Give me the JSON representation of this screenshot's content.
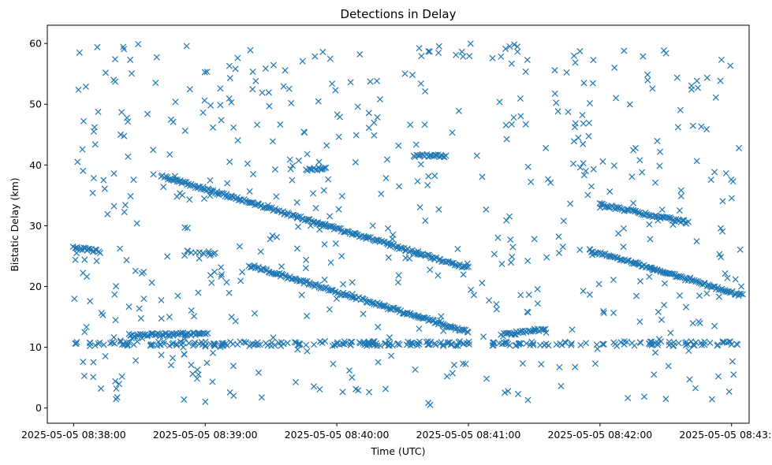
{
  "chart_data": {
    "type": "scatter",
    "title": "Detections in Delay",
    "xlabel": "Time (UTC)",
    "ylabel": "Bistatic Delay (km)",
    "x_type": "datetime",
    "xlim": [
      "2025-05-05 08:37:48",
      "2025-05-05 08:43:08"
    ],
    "ylim": [
      -2.5,
      63
    ],
    "xticks": [
      "2025-05-05 08:38:00",
      "2025-05-05 08:39:00",
      "2025-05-05 08:40:00",
      "2025-05-05 08:41:00",
      "2025-05-05 08:42:00",
      "2025-05-05 08:43:00"
    ],
    "yticks": [
      0,
      10,
      20,
      30,
      40,
      50,
      60
    ],
    "marker": "x",
    "marker_color": "#1f77b4",
    "grid": false,
    "legend": "none",
    "series": [
      {
        "tracks": [
          {
            "t_start": "2025-05-05 08:38:40",
            "t_end": "2025-05-05 08:41:00",
            "y_start": 38.2,
            "y_end": 23.0
          },
          {
            "t_start": "2025-05-05 08:38:00",
            "t_end": "2025-05-05 08:38:12",
            "y_start": 26.5,
            "y_end": 25.7
          },
          {
            "t_start": "2025-05-05 08:39:20",
            "t_end": "2025-05-05 08:41:00",
            "y_start": 23.5,
            "y_end": 12.5
          },
          {
            "t_start": "2025-05-05 08:41:55",
            "t_end": "2025-05-05 08:43:05",
            "y_start": 26.0,
            "y_end": 18.5
          },
          {
            "t_start": "2025-05-05 08:42:00",
            "t_end": "2025-05-05 08:42:40",
            "y_start": 33.5,
            "y_end": 30.5
          },
          {
            "t_start": "2025-05-05 08:39:46",
            "t_end": "2025-05-05 08:39:55",
            "y_start": 39.2,
            "y_end": 39.5
          },
          {
            "t_start": "2025-05-05 08:40:35",
            "t_end": "2025-05-05 08:40:50",
            "y_start": 41.5,
            "y_end": 41.5
          },
          {
            "t_start": "2025-05-05 08:41:15",
            "t_end": "2025-05-05 08:41:35",
            "y_start": 12.0,
            "y_end": 13.0
          },
          {
            "t_start": "2025-05-05 08:38:25",
            "t_end": "2025-05-05 08:39:00",
            "y_start": 12.0,
            "y_end": 12.2
          }
        ],
        "constant_bands": [
          {
            "t_start": "2025-05-05 08:38:00",
            "t_end": "2025-05-05 08:43:05",
            "y": 10.6
          },
          {
            "t_start": "2025-05-05 08:38:50",
            "t_end": "2025-05-05 08:39:05",
            "y": 25.5
          }
        ],
        "clutter_count": 560,
        "clutter_y_range": [
          0.5,
          60
        ]
      }
    ]
  }
}
